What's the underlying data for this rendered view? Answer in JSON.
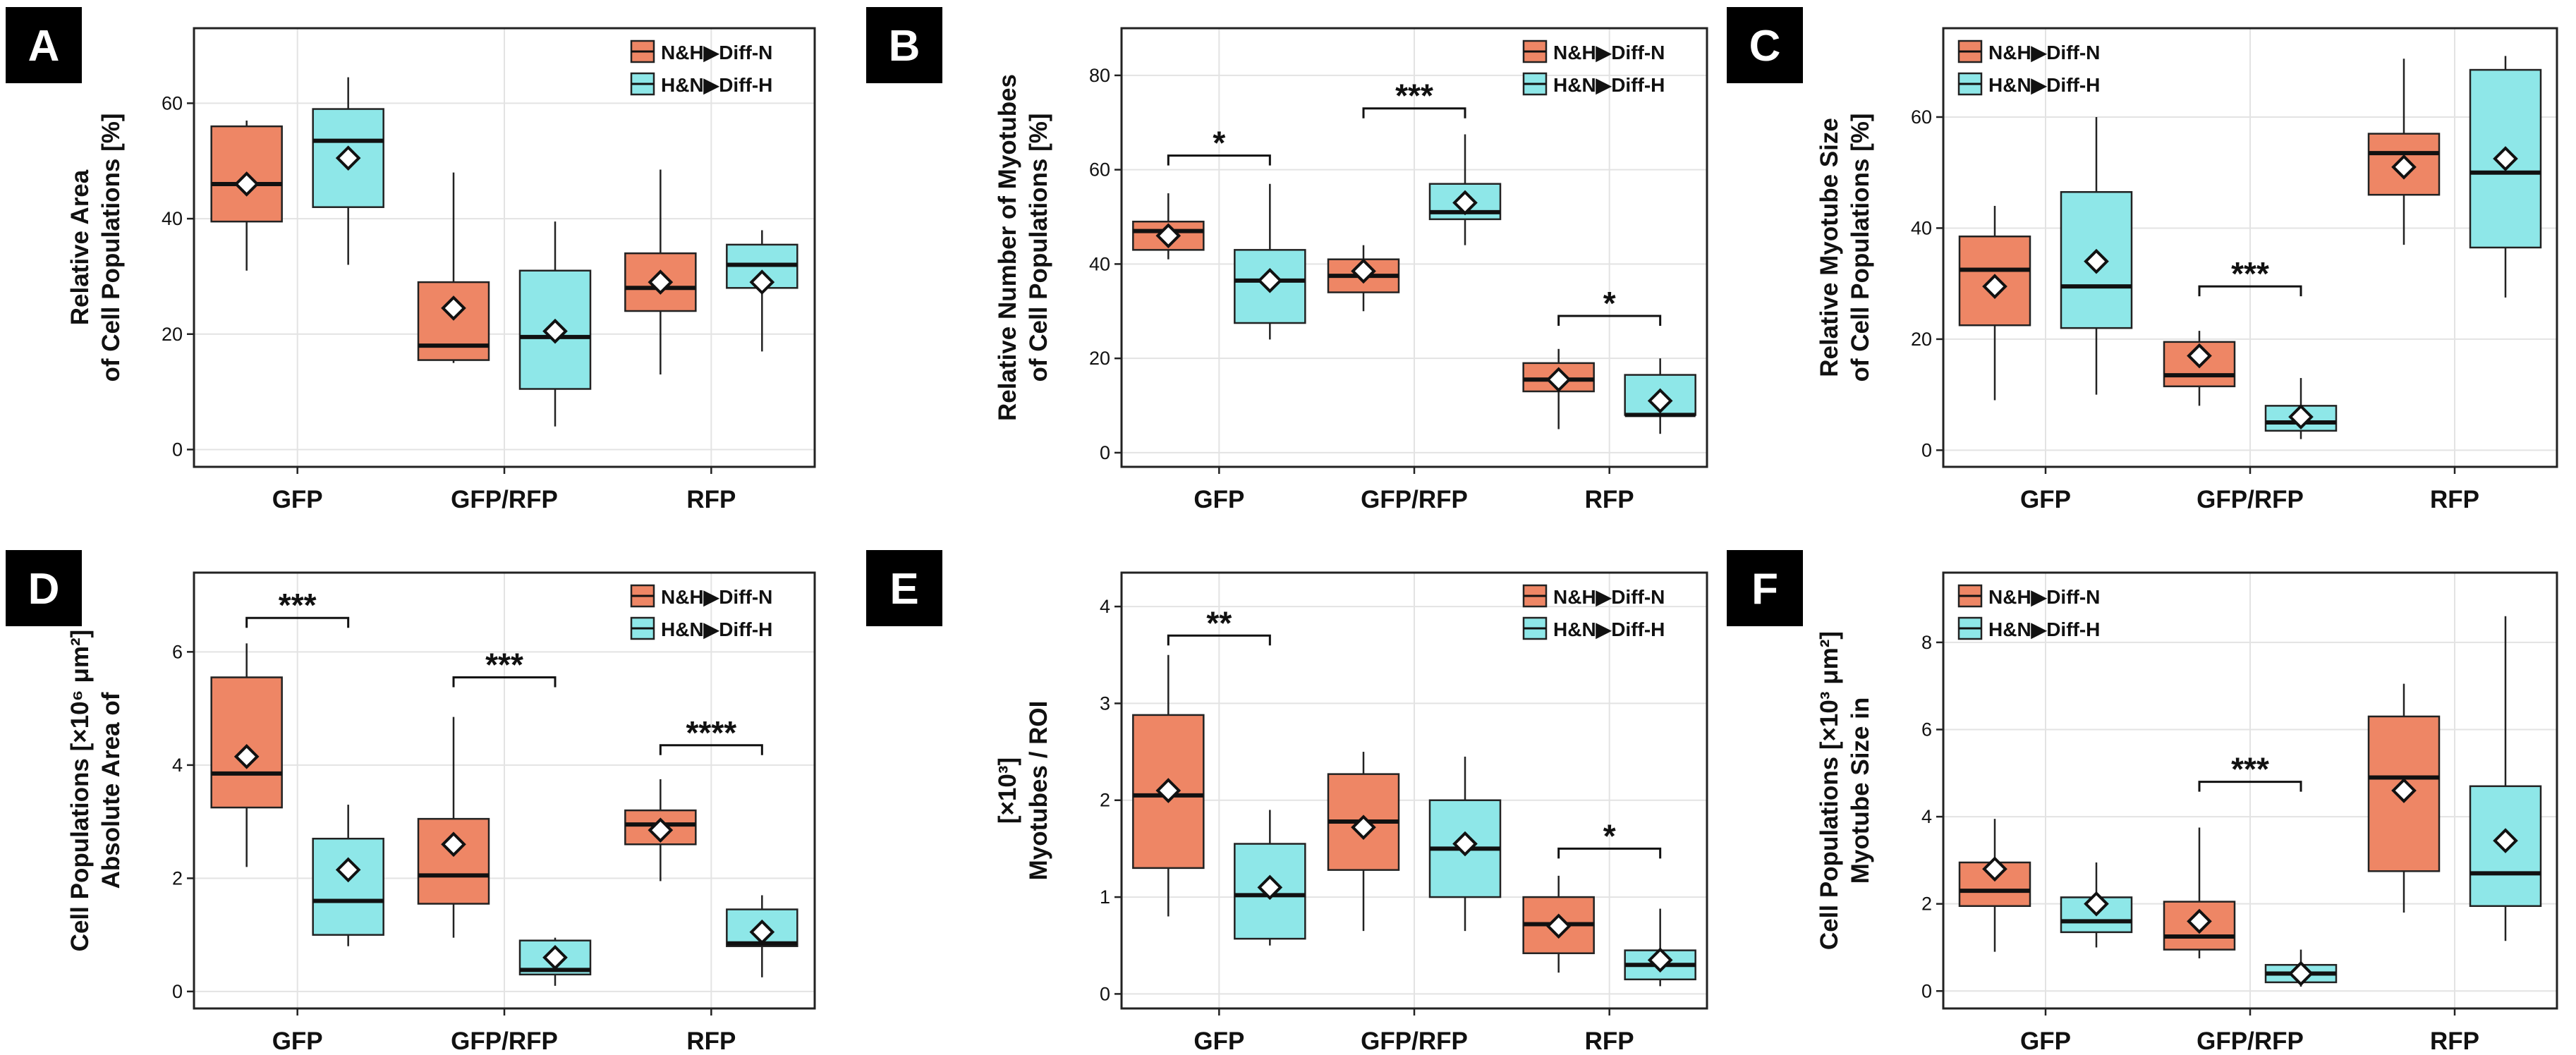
{
  "colors": {
    "n_fill": "#ee8665",
    "h_fill": "#8ee7e8",
    "stroke": "#222222",
    "grid": "#e3e3e3"
  },
  "legend": [
    {
      "label": "N&H▶Diff-N",
      "color": "#ee8665"
    },
    {
      "label": "H&N▶Diff-H",
      "color": "#8ee7e8"
    }
  ],
  "chart_data": [
    {
      "panel": "A",
      "type": "box",
      "ylabel_lines": [
        "Relative Area",
        "of Cell Populations [%]"
      ],
      "ylim": [
        -3,
        73
      ],
      "yticks": [
        0,
        20,
        40,
        60
      ],
      "categories": [
        "GFP",
        "GFP/RFP",
        "RFP"
      ],
      "legend_position": "top-right",
      "series": [
        {
          "name": "N&H▶Diff-N",
          "boxes": [
            {
              "min": 31,
              "q1": 39.5,
              "median": 46,
              "q3": 56,
              "max": 57,
              "mean": 46
            },
            {
              "min": 15,
              "q1": 15.5,
              "median": 18,
              "q3": 29,
              "max": 48,
              "mean": 24.5
            },
            {
              "min": 13,
              "q1": 24,
              "median": 28,
              "q3": 34,
              "max": 48.5,
              "mean": 29
            }
          ]
        },
        {
          "name": "H&N▶Diff-H",
          "boxes": [
            {
              "min": 32,
              "q1": 42,
              "median": 53.5,
              "q3": 59,
              "max": 64.5,
              "mean": 50.5
            },
            {
              "min": 4,
              "q1": 10.5,
              "median": 19.5,
              "q3": 31,
              "max": 39.5,
              "mean": 20.5
            },
            {
              "min": 17,
              "q1": 28,
              "median": 32,
              "q3": 35.5,
              "max": 38,
              "mean": 29
            }
          ]
        }
      ],
      "significance": []
    },
    {
      "panel": "B",
      "type": "box",
      "ylabel_lines": [
        "Relative Number of Myotubes",
        "of Cell Populations [%]"
      ],
      "ylim": [
        -3,
        90
      ],
      "yticks": [
        0,
        20,
        40,
        60,
        80
      ],
      "categories": [
        "GFP",
        "GFP/RFP",
        "RFP"
      ],
      "legend_position": "top-right",
      "series": [
        {
          "name": "N&H▶Diff-N",
          "boxes": [
            {
              "min": 41,
              "q1": 43,
              "median": 47,
              "q3": 49,
              "max": 55,
              "mean": 46
            },
            {
              "min": 30,
              "q1": 34,
              "median": 37.5,
              "q3": 41,
              "max": 44,
              "mean": 38.5
            },
            {
              "min": 5,
              "q1": 13,
              "median": 15.5,
              "q3": 19,
              "max": 22,
              "mean": 15.5
            }
          ]
        },
        {
          "name": "H&N▶Diff-H",
          "boxes": [
            {
              "min": 24,
              "q1": 27.5,
              "median": 36.5,
              "q3": 43,
              "max": 57,
              "mean": 36.5
            },
            {
              "min": 44,
              "q1": 49.5,
              "median": 51,
              "q3": 57,
              "max": 67.5,
              "mean": 53
            },
            {
              "min": 4,
              "q1": 8,
              "median": 8,
              "q3": 16.5,
              "max": 20,
              "mean": 11
            }
          ]
        }
      ],
      "significance": [
        {
          "category_index": 0,
          "label": "*",
          "y": 63
        },
        {
          "category_index": 1,
          "label": "***",
          "y": 73
        },
        {
          "category_index": 2,
          "label": "*",
          "y": 29
        }
      ]
    },
    {
      "panel": "C",
      "type": "box",
      "ylabel_lines": [
        "Relative Myotube Size",
        "of Cell Populations [%]"
      ],
      "ylim": [
        -3,
        76
      ],
      "yticks": [
        0,
        20,
        40,
        60
      ],
      "categories": [
        "GFP",
        "GFP/RFP",
        "RFP"
      ],
      "legend_position": "top-left",
      "series": [
        {
          "name": "N&H▶Diff-N",
          "boxes": [
            {
              "min": 9,
              "q1": 22.5,
              "median": 32.5,
              "q3": 38.5,
              "max": 44,
              "mean": 29.5
            },
            {
              "min": 8,
              "q1": 11.5,
              "median": 13.5,
              "q3": 19.5,
              "max": 21.5,
              "mean": 17
            },
            {
              "min": 37,
              "q1": 46,
              "median": 53.5,
              "q3": 57,
              "max": 70.5,
              "mean": 51
            }
          ]
        },
        {
          "name": "H&N▶Diff-H",
          "boxes": [
            {
              "min": 10,
              "q1": 22,
              "median": 29.5,
              "q3": 46.5,
              "max": 60,
              "mean": 34
            },
            {
              "min": 2,
              "q1": 3.5,
              "median": 5,
              "q3": 8,
              "max": 13,
              "mean": 6
            },
            {
              "min": 27.5,
              "q1": 36.5,
              "median": 50,
              "q3": 68.5,
              "max": 71,
              "mean": 52.5
            }
          ]
        }
      ],
      "significance": [
        {
          "category_index": 1,
          "label": "***",
          "y": 29.5
        }
      ]
    },
    {
      "panel": "D",
      "type": "box",
      "ylabel_lines": [
        "Cell Populations [×10⁶ μm²]",
        "Absolute Area of"
      ],
      "ylim": [
        -0.3,
        7.4
      ],
      "yticks": [
        0,
        2,
        4,
        6
      ],
      "categories": [
        "GFP",
        "GFP/RFP",
        "RFP"
      ],
      "legend_position": "top-right",
      "series": [
        {
          "name": "N&H▶Diff-N",
          "boxes": [
            {
              "min": 2.2,
              "q1": 3.25,
              "median": 3.85,
              "q3": 5.55,
              "max": 6.15,
              "mean": 4.15
            },
            {
              "min": 0.95,
              "q1": 1.55,
              "median": 2.05,
              "q3": 3.05,
              "max": 4.85,
              "mean": 2.6
            },
            {
              "min": 1.95,
              "q1": 2.6,
              "median": 2.95,
              "q3": 3.2,
              "max": 3.75,
              "mean": 2.85
            }
          ]
        },
        {
          "name": "H&N▶Diff-H",
          "boxes": [
            {
              "min": 0.8,
              "q1": 1.0,
              "median": 1.6,
              "q3": 2.7,
              "max": 3.3,
              "mean": 2.15
            },
            {
              "min": 0.1,
              "q1": 0.3,
              "median": 0.38,
              "q3": 0.9,
              "max": 0.95,
              "mean": 0.6
            },
            {
              "min": 0.25,
              "q1": 0.8,
              "median": 0.85,
              "q3": 1.45,
              "max": 1.7,
              "mean": 1.05
            }
          ]
        }
      ],
      "significance": [
        {
          "category_index": 0,
          "label": "***",
          "y": 6.6
        },
        {
          "category_index": 1,
          "label": "***",
          "y": 5.55
        },
        {
          "category_index": 2,
          "label": "****",
          "y": 4.35
        }
      ]
    },
    {
      "panel": "E",
      "type": "box",
      "ylabel_lines": [
        "[×10³]",
        "Myotubes / ROI"
      ],
      "ylim": [
        -0.15,
        4.35
      ],
      "yticks": [
        0,
        1,
        2,
        3,
        4
      ],
      "categories": [
        "GFP",
        "GFP/RFP",
        "RFP"
      ],
      "legend_position": "top-right",
      "series": [
        {
          "name": "N&H▶Diff-N",
          "boxes": [
            {
              "min": 0.8,
              "q1": 1.3,
              "median": 2.05,
              "q3": 2.88,
              "max": 3.5,
              "mean": 2.1
            },
            {
              "min": 0.65,
              "q1": 1.28,
              "median": 1.78,
              "q3": 2.27,
              "max": 2.5,
              "mean": 1.72
            },
            {
              "min": 0.22,
              "q1": 0.42,
              "median": 0.72,
              "q3": 1.0,
              "max": 1.22,
              "mean": 0.7
            }
          ]
        },
        {
          "name": "H&N▶Diff-H",
          "boxes": [
            {
              "min": 0.5,
              "q1": 0.57,
              "median": 1.02,
              "q3": 1.55,
              "max": 1.9,
              "mean": 1.1
            },
            {
              "min": 0.65,
              "q1": 1.0,
              "median": 1.5,
              "q3": 2.0,
              "max": 2.45,
              "mean": 1.55
            },
            {
              "min": 0.08,
              "q1": 0.15,
              "median": 0.3,
              "q3": 0.45,
              "max": 0.88,
              "mean": 0.35
            }
          ]
        }
      ],
      "significance": [
        {
          "category_index": 0,
          "label": "**",
          "y": 3.7
        },
        {
          "category_index": 2,
          "label": "*",
          "y": 1.5
        }
      ]
    },
    {
      "panel": "F",
      "type": "box",
      "ylabel_lines": [
        "Cell Populations [×10³ μm²]",
        "Myotube Size in"
      ],
      "ylim": [
        -0.4,
        9.6
      ],
      "yticks": [
        0,
        2,
        4,
        6,
        8
      ],
      "categories": [
        "GFP",
        "GFP/RFP",
        "RFP"
      ],
      "legend_position": "top-left",
      "series": [
        {
          "name": "N&H▶Diff-N",
          "boxes": [
            {
              "min": 0.9,
              "q1": 1.95,
              "median": 2.3,
              "q3": 2.95,
              "max": 3.95,
              "mean": 2.8
            },
            {
              "min": 0.75,
              "q1": 0.95,
              "median": 1.25,
              "q3": 2.05,
              "max": 3.75,
              "mean": 1.6
            },
            {
              "min": 1.8,
              "q1": 2.75,
              "median": 4.9,
              "q3": 6.3,
              "max": 7.05,
              "mean": 4.6
            }
          ]
        },
        {
          "name": "H&N▶Diff-H",
          "boxes": [
            {
              "min": 1.0,
              "q1": 1.35,
              "median": 1.6,
              "q3": 2.15,
              "max": 2.95,
              "mean": 2.0
            },
            {
              "min": 0.1,
              "q1": 0.2,
              "median": 0.4,
              "q3": 0.6,
              "max": 0.95,
              "mean": 0.4
            },
            {
              "min": 1.15,
              "q1": 1.95,
              "median": 2.7,
              "q3": 4.7,
              "max": 8.6,
              "mean": 3.45
            }
          ]
        }
      ],
      "significance": [
        {
          "category_index": 1,
          "label": "***",
          "y": 4.8
        }
      ]
    }
  ]
}
